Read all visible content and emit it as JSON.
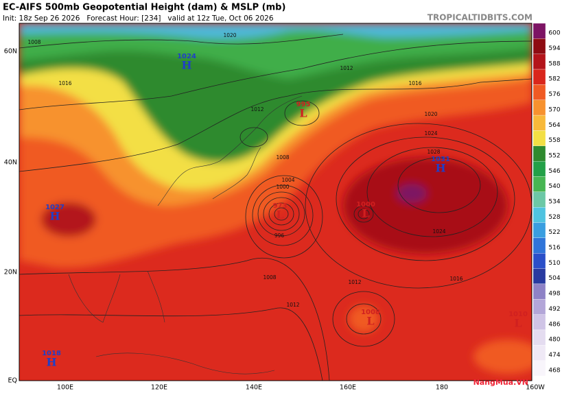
{
  "header": {
    "title": "EC-AIFS 500mb Geopotential Height (dam) & MSLP (mb)",
    "subtitle": "Init: 18z Sep 26 2026   Forecast Hour: [234]   valid at 12z Tue, Oct 06 2026",
    "source": "TROPICALTIDBITS.COM"
  },
  "colorbar": {
    "levels": [
      600,
      594,
      588,
      582,
      576,
      570,
      564,
      558,
      552,
      546,
      540,
      534,
      528,
      522,
      516,
      510,
      504,
      498,
      492,
      486,
      480,
      474,
      468
    ],
    "colors": [
      "#7d1464",
      "#8e0c12",
      "#b3141a",
      "#d9261c",
      "#f05a24",
      "#f7922f",
      "#f8b93a",
      "#f3df45",
      "#2f8a2f",
      "#23a048",
      "#47b553",
      "#6cc8a6",
      "#4fc3e0",
      "#3a9ee0",
      "#2f74d8",
      "#2a4fc8",
      "#283aa0",
      "#8e82c6",
      "#b3a6d8",
      "#cfc4e6",
      "#e4dcf0",
      "#efe9f6",
      "#f8f5fb"
    ]
  },
  "axes": {
    "lat_labels": [
      "60N",
      "40N",
      "20N",
      "EQ"
    ],
    "lon_labels": [
      "100E",
      "120E",
      "140E",
      "160E",
      "180",
      "160W"
    ]
  },
  "centers": [
    {
      "type": "H",
      "value": 1024
    },
    {
      "type": "L",
      "value": 995
    },
    {
      "type": "H",
      "value": 1031
    },
    {
      "type": "L",
      "value": 973
    },
    {
      "type": "L",
      "value": 1000
    },
    {
      "type": "L",
      "value": 1008
    },
    {
      "type": "L",
      "value": 1010
    },
    {
      "type": "H",
      "value": 1027
    },
    {
      "type": "H",
      "value": 1018
    }
  ],
  "isobar_labels": [
    1008,
    1020,
    1016,
    1012,
    1008,
    1012,
    1016,
    1020,
    1024,
    1028,
    1004,
    1000,
    996,
    1008,
    1012,
    1012,
    1016,
    1024
  ],
  "watermark": "NangMua.VN"
}
